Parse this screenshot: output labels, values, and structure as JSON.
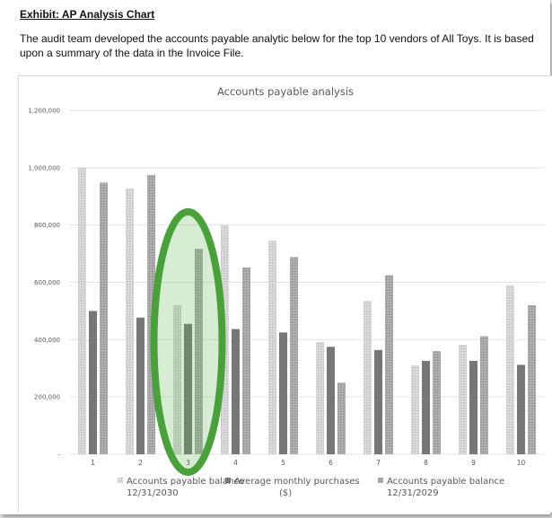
{
  "exhibit": {
    "title": "Exhibit: AP Analysis Chart",
    "intro": "The audit team developed the accounts payable analytic below for the top 10 vendors of All Toys. It is based upon a summary of the data in the Invoice File."
  },
  "chart_data": {
    "type": "bar",
    "title": "Accounts payable analysis",
    "xlabel": "",
    "ylabel": "",
    "categories": [
      "1",
      "2",
      "3",
      "4",
      "5",
      "6",
      "7",
      "8",
      "9",
      "10"
    ],
    "ylim": [
      0,
      1200000
    ],
    "yticks": [
      0,
      200000,
      400000,
      600000,
      800000,
      1000000,
      1200000
    ],
    "ytick_labels": [
      "-",
      "200,000",
      "400,000",
      "600,000",
      "800,000",
      "1,000,000",
      "1,200,000"
    ],
    "grid": true,
    "legend_position": "bottom",
    "series": [
      {
        "name": "Accounts payable balance 12/31/2030",
        "legend_line1": "Accounts payable balance",
        "legend_line2": "12/31/2030",
        "values": [
          1000000,
          928000,
          520000,
          800000,
          745000,
          392000,
          535000,
          310000,
          382000,
          590000
        ],
        "color": "#d9d9d9"
      },
      {
        "name": "Average monthly purchases ($)",
        "legend_line1": "Average monthly purchases",
        "legend_line2": "($)",
        "values": [
          500000,
          477000,
          455000,
          437000,
          425000,
          375000,
          364000,
          326000,
          326000,
          312000
        ],
        "color": "#7f7f7f"
      },
      {
        "name": "Accounts payable balance 12/31/2029",
        "legend_line1": "Accounts payable balance",
        "legend_line2": "12/31/2029",
        "values": [
          948000,
          975000,
          717000,
          652000,
          688000,
          250000,
          625000,
          360000,
          412000,
          520000
        ],
        "color": "#a6a6a6"
      }
    ],
    "annotation": {
      "shape": "ellipse",
      "highlighted_category": "3",
      "color": "#4aa13c"
    }
  }
}
